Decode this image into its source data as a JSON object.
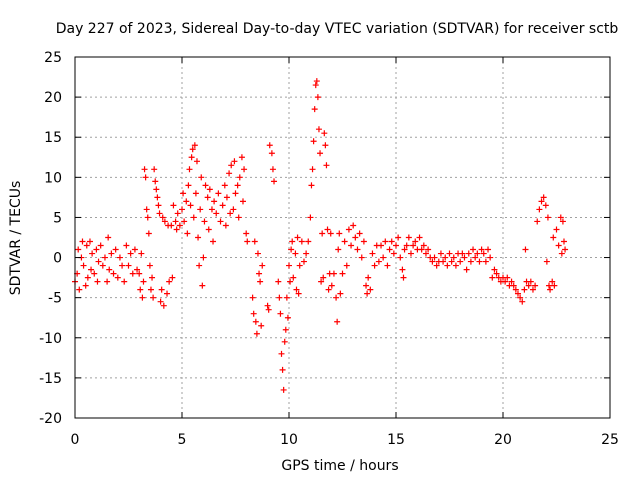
{
  "chart_data": {
    "type": "scatter",
    "title": "Day 227 of 2023, Sidereal Day-to-day VTEC variation (SDTVAR) for receiver sctb",
    "xlabel": "GPS time / hours",
    "ylabel": "SDTVAR / TECUs",
    "xlim": [
      0,
      25
    ],
    "ylim": [
      -20,
      25
    ],
    "xticks": [
      0,
      5,
      10,
      15,
      20,
      25
    ],
    "xtick_labels": [
      "0",
      "5",
      "10",
      "15",
      "20",
      "25"
    ],
    "yticks": [
      -20,
      -15,
      -10,
      -5,
      0,
      5,
      10,
      15,
      20,
      25
    ],
    "ytick_labels": [
      "-20",
      "-15",
      "-10",
      "-5",
      "0",
      "5",
      "10",
      "15",
      "20",
      "25"
    ],
    "grid": true,
    "marker": "+",
    "color": "#ff0000",
    "series": [
      {
        "name": "SDTVAR",
        "points": [
          [
            0.0,
            -3.0
          ],
          [
            0.1,
            -2.0
          ],
          [
            0.15,
            1.0
          ],
          [
            0.2,
            -4.0
          ],
          [
            0.3,
            0.0
          ],
          [
            0.35,
            2.0
          ],
          [
            0.4,
            -1.0
          ],
          [
            0.5,
            -3.5
          ],
          [
            0.55,
            1.5
          ],
          [
            0.6,
            -2.5
          ],
          [
            0.7,
            2.0
          ],
          [
            0.75,
            -1.5
          ],
          [
            0.8,
            0.5
          ],
          [
            0.9,
            -2.0
          ],
          [
            1.0,
            1.0
          ],
          [
            1.05,
            -3.0
          ],
          [
            1.1,
            -0.5
          ],
          [
            1.2,
            1.5
          ],
          [
            1.3,
            -1.0
          ],
          [
            1.4,
            0.0
          ],
          [
            1.5,
            -3.0
          ],
          [
            1.55,
            2.5
          ],
          [
            1.6,
            -1.5
          ],
          [
            1.7,
            0.5
          ],
          [
            1.8,
            -2.0
          ],
          [
            1.9,
            1.0
          ],
          [
            2.0,
            -2.5
          ],
          [
            2.1,
            0.0
          ],
          [
            2.2,
            -1.0
          ],
          [
            2.3,
            -3.0
          ],
          [
            2.4,
            1.5
          ],
          [
            2.5,
            -1.0
          ],
          [
            2.6,
            0.5
          ],
          [
            2.7,
            -2.0
          ],
          [
            2.8,
            1.0
          ],
          [
            2.9,
            -1.5
          ],
          [
            3.0,
            -2.0
          ],
          [
            3.05,
            -4.0
          ],
          [
            3.1,
            0.5
          ],
          [
            3.15,
            -5.0
          ],
          [
            3.2,
            -3.0
          ],
          [
            3.25,
            11.0
          ],
          [
            3.3,
            10.0
          ],
          [
            3.35,
            6.0
          ],
          [
            3.4,
            5.0
          ],
          [
            3.45,
            3.0
          ],
          [
            3.5,
            -1.0
          ],
          [
            3.55,
            -4.0
          ],
          [
            3.6,
            -2.5
          ],
          [
            3.65,
            -5.0
          ],
          [
            3.7,
            11.0
          ],
          [
            3.75,
            9.5
          ],
          [
            3.8,
            8.5
          ],
          [
            3.85,
            7.5
          ],
          [
            3.9,
            6.5
          ],
          [
            3.95,
            5.5
          ],
          [
            4.0,
            -5.5
          ],
          [
            4.05,
            -4.0
          ],
          [
            4.1,
            5.0
          ],
          [
            4.15,
            -6.0
          ],
          [
            4.2,
            4.5
          ],
          [
            4.3,
            -4.5
          ],
          [
            4.35,
            4.0
          ],
          [
            4.4,
            -3.0
          ],
          [
            4.5,
            4.0
          ],
          [
            4.55,
            -2.5
          ],
          [
            4.6,
            6.5
          ],
          [
            4.7,
            4.5
          ],
          [
            4.75,
            3.5
          ],
          [
            4.8,
            5.5
          ],
          [
            4.9,
            4.0
          ],
          [
            5.0,
            6.0
          ],
          [
            5.05,
            8.0
          ],
          [
            5.1,
            4.5
          ],
          [
            5.2,
            7.0
          ],
          [
            5.25,
            3.0
          ],
          [
            5.3,
            9.0
          ],
          [
            5.35,
            11.0
          ],
          [
            5.4,
            6.5
          ],
          [
            5.45,
            12.5
          ],
          [
            5.5,
            13.5
          ],
          [
            5.55,
            5.0
          ],
          [
            5.6,
            14.0
          ],
          [
            5.65,
            8.0
          ],
          [
            5.7,
            12.0
          ],
          [
            5.75,
            2.5
          ],
          [
            5.8,
            -1.0
          ],
          [
            5.85,
            6.0
          ],
          [
            5.9,
            10.0
          ],
          [
            5.95,
            -3.5
          ],
          [
            6.0,
            0.0
          ],
          [
            6.05,
            4.5
          ],
          [
            6.1,
            9.0
          ],
          [
            6.2,
            7.5
          ],
          [
            6.25,
            3.5
          ],
          [
            6.3,
            8.5
          ],
          [
            6.4,
            6.0
          ],
          [
            6.45,
            2.0
          ],
          [
            6.5,
            7.0
          ],
          [
            6.6,
            5.5
          ],
          [
            6.7,
            8.0
          ],
          [
            6.8,
            4.5
          ],
          [
            6.9,
            6.5
          ],
          [
            7.0,
            9.0
          ],
          [
            7.05,
            4.0
          ],
          [
            7.1,
            7.5
          ],
          [
            7.2,
            10.5
          ],
          [
            7.25,
            5.5
          ],
          [
            7.3,
            11.5
          ],
          [
            7.4,
            6.0
          ],
          [
            7.45,
            12.0
          ],
          [
            7.5,
            8.0
          ],
          [
            7.6,
            9.0
          ],
          [
            7.65,
            5.0
          ],
          [
            7.7,
            10.0
          ],
          [
            7.8,
            12.5
          ],
          [
            7.85,
            7.0
          ],
          [
            7.9,
            11.0
          ],
          [
            8.0,
            3.0
          ],
          [
            8.05,
            2.0
          ],
          [
            8.3,
            -5.0
          ],
          [
            8.35,
            -7.0
          ],
          [
            8.4,
            2.0
          ],
          [
            8.45,
            -8.0
          ],
          [
            8.5,
            -9.5
          ],
          [
            8.55,
            0.5
          ],
          [
            8.6,
            -2.0
          ],
          [
            8.65,
            -3.0
          ],
          [
            8.7,
            -8.5
          ],
          [
            8.75,
            -1.0
          ],
          [
            9.0,
            -6.0
          ],
          [
            9.05,
            -6.5
          ],
          [
            9.1,
            14.0
          ],
          [
            9.2,
            13.0
          ],
          [
            9.25,
            11.0
          ],
          [
            9.3,
            9.5
          ],
          [
            9.5,
            -3.0
          ],
          [
            9.55,
            -5.0
          ],
          [
            9.6,
            -7.0
          ],
          [
            9.65,
            -12.0
          ],
          [
            9.7,
            -14.0
          ],
          [
            9.75,
            -16.5
          ],
          [
            9.8,
            -10.5
          ],
          [
            9.85,
            -9.0
          ],
          [
            9.9,
            -5.0
          ],
          [
            9.95,
            -7.5
          ],
          [
            10.0,
            -1.0
          ],
          [
            10.05,
            -3.0
          ],
          [
            10.1,
            1.0
          ],
          [
            10.15,
            2.0
          ],
          [
            10.2,
            -2.5
          ],
          [
            10.3,
            0.5
          ],
          [
            10.35,
            -4.0
          ],
          [
            10.4,
            2.5
          ],
          [
            10.45,
            -4.5
          ],
          [
            10.5,
            -1.0
          ],
          [
            10.6,
            2.0
          ],
          [
            10.7,
            -0.5
          ],
          [
            10.8,
            0.5
          ],
          [
            10.9,
            2.0
          ],
          [
            11.0,
            5.0
          ],
          [
            11.05,
            9.0
          ],
          [
            11.1,
            11.0
          ],
          [
            11.15,
            14.5
          ],
          [
            11.2,
            18.5
          ],
          [
            11.25,
            21.5
          ],
          [
            11.3,
            22.0
          ],
          [
            11.35,
            20.0
          ],
          [
            11.4,
            16.0
          ],
          [
            11.45,
            13.0
          ],
          [
            11.5,
            -3.0
          ],
          [
            11.55,
            3.0
          ],
          [
            11.6,
            -2.5
          ],
          [
            11.65,
            15.5
          ],
          [
            11.7,
            14.0
          ],
          [
            11.75,
            11.5
          ],
          [
            11.8,
            3.5
          ],
          [
            11.85,
            -4.0
          ],
          [
            11.9,
            -2.0
          ],
          [
            11.95,
            3.0
          ],
          [
            12.0,
            -3.5
          ],
          [
            12.1,
            -2.0
          ],
          [
            12.2,
            -5.0
          ],
          [
            12.25,
            -8.0
          ],
          [
            12.3,
            1.0
          ],
          [
            12.35,
            3.0
          ],
          [
            12.4,
            -4.5
          ],
          [
            12.5,
            -2.0
          ],
          [
            12.6,
            2.0
          ],
          [
            12.7,
            -1.0
          ],
          [
            12.8,
            3.5
          ],
          [
            12.9,
            1.5
          ],
          [
            13.0,
            4.0
          ],
          [
            13.1,
            2.5
          ],
          [
            13.2,
            1.0
          ],
          [
            13.3,
            3.0
          ],
          [
            13.4,
            0.0
          ],
          [
            13.5,
            2.0
          ],
          [
            13.6,
            -3.5
          ],
          [
            13.65,
            -4.5
          ],
          [
            13.7,
            -2.5
          ],
          [
            13.8,
            -4.0
          ],
          [
            13.9,
            0.5
          ],
          [
            14.0,
            -1.0
          ],
          [
            14.1,
            1.5
          ],
          [
            14.2,
            -0.5
          ],
          [
            14.3,
            1.5
          ],
          [
            14.4,
            0.0
          ],
          [
            14.5,
            2.0
          ],
          [
            14.6,
            -1.0
          ],
          [
            14.7,
            1.0
          ],
          [
            14.8,
            2.0
          ],
          [
            14.9,
            0.5
          ],
          [
            15.0,
            1.5
          ],
          [
            15.1,
            2.5
          ],
          [
            15.2,
            0.0
          ],
          [
            15.3,
            -1.5
          ],
          [
            15.35,
            -2.5
          ],
          [
            15.4,
            1.0
          ],
          [
            15.5,
            1.5
          ],
          [
            15.6,
            2.5
          ],
          [
            15.7,
            0.5
          ],
          [
            15.8,
            1.5
          ],
          [
            15.9,
            2.0
          ],
          [
            16.0,
            1.0
          ],
          [
            16.1,
            2.5
          ],
          [
            16.2,
            1.0
          ],
          [
            16.3,
            1.5
          ],
          [
            16.4,
            0.5
          ],
          [
            16.5,
            1.0
          ],
          [
            16.6,
            0.0
          ],
          [
            16.7,
            -0.5
          ],
          [
            16.8,
            0.0
          ],
          [
            16.9,
            -1.0
          ],
          [
            17.0,
            -0.5
          ],
          [
            17.1,
            0.5
          ],
          [
            17.2,
            -0.5
          ],
          [
            17.3,
            0.0
          ],
          [
            17.4,
            -1.0
          ],
          [
            17.5,
            0.5
          ],
          [
            17.6,
            -0.5
          ],
          [
            17.7,
            0.0
          ],
          [
            17.8,
            -1.0
          ],
          [
            17.9,
            0.5
          ],
          [
            18.0,
            -0.5
          ],
          [
            18.1,
            0.5
          ],
          [
            18.2,
            0.0
          ],
          [
            18.3,
            -1.5
          ],
          [
            18.4,
            0.5
          ],
          [
            18.5,
            -0.5
          ],
          [
            18.6,
            1.0
          ],
          [
            18.7,
            0.0
          ],
          [
            18.8,
            0.5
          ],
          [
            18.9,
            -0.5
          ],
          [
            19.0,
            1.0
          ],
          [
            19.1,
            0.5
          ],
          [
            19.2,
            -0.5
          ],
          [
            19.3,
            1.0
          ],
          [
            19.4,
            0.0
          ],
          [
            19.5,
            -2.5
          ],
          [
            19.6,
            -1.5
          ],
          [
            19.7,
            -2.0
          ],
          [
            19.8,
            -2.5
          ],
          [
            19.9,
            -3.0
          ],
          [
            20.0,
            -2.5
          ],
          [
            20.1,
            -3.0
          ],
          [
            20.2,
            -2.5
          ],
          [
            20.3,
            -3.5
          ],
          [
            20.4,
            -3.0
          ],
          [
            20.5,
            -3.5
          ],
          [
            20.6,
            -4.0
          ],
          [
            20.7,
            -4.5
          ],
          [
            20.8,
            -5.0
          ],
          [
            20.9,
            -5.5
          ],
          [
            21.0,
            -4.0
          ],
          [
            21.05,
            1.0
          ],
          [
            21.1,
            -3.0
          ],
          [
            21.2,
            -3.5
          ],
          [
            21.3,
            -3.0
          ],
          [
            21.4,
            -4.0
          ],
          [
            21.5,
            -3.5
          ],
          [
            21.6,
            4.5
          ],
          [
            21.7,
            6.0
          ],
          [
            21.8,
            7.0
          ],
          [
            21.9,
            7.5
          ],
          [
            22.0,
            6.5
          ],
          [
            22.05,
            -0.5
          ],
          [
            22.1,
            5.0
          ],
          [
            22.15,
            -3.5
          ],
          [
            22.2,
            -4.0
          ],
          [
            22.3,
            -3.0
          ],
          [
            22.35,
            2.5
          ],
          [
            22.4,
            -3.5
          ],
          [
            22.5,
            3.5
          ],
          [
            22.6,
            1.5
          ],
          [
            22.7,
            5.0
          ],
          [
            22.75,
            0.5
          ],
          [
            22.8,
            4.5
          ],
          [
            22.85,
            2.0
          ],
          [
            22.9,
            1.0
          ]
        ]
      }
    ]
  }
}
